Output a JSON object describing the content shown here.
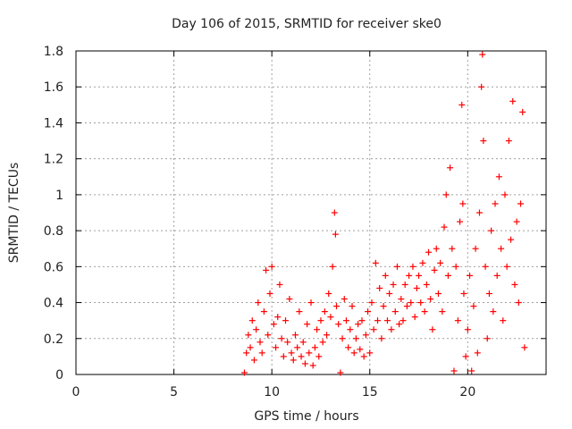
{
  "chart_data": {
    "type": "scatter",
    "title": "Day 106 of 2015, SRMTID for receiver ske0",
    "xlabel": "GPS time / hours",
    "ylabel": "SRMTID / TECUs",
    "xlim": [
      0,
      24
    ],
    "ylim": [
      0,
      1.8
    ],
    "x_ticks": [
      0,
      5,
      10,
      15,
      20
    ],
    "y_ticks": [
      0,
      0.2,
      0.4,
      0.6,
      0.8,
      1,
      1.2,
      1.4,
      1.6,
      1.8
    ],
    "x_tick_labels": [
      "0",
      "5",
      "10",
      "15",
      "20"
    ],
    "y_tick_labels": [
      "0",
      "0.2",
      "0.4",
      "0.6",
      "0.8",
      "1",
      "1.2",
      "1.4",
      "1.6",
      "1.8"
    ],
    "grid": true,
    "marker": "+",
    "series": [
      {
        "name": "SRMTID",
        "color": "#ff0000",
        "points": [
          [
            8.6,
            0.01
          ],
          [
            8.7,
            0.12
          ],
          [
            8.8,
            0.22
          ],
          [
            8.9,
            0.15
          ],
          [
            9.0,
            0.3
          ],
          [
            9.1,
            0.08
          ],
          [
            9.2,
            0.25
          ],
          [
            9.3,
            0.4
          ],
          [
            9.4,
            0.18
          ],
          [
            9.5,
            0.12
          ],
          [
            9.6,
            0.35
          ],
          [
            9.7,
            0.58
          ],
          [
            9.8,
            0.22
          ],
          [
            9.9,
            0.45
          ],
          [
            10.0,
            0.6
          ],
          [
            10.1,
            0.28
          ],
          [
            10.2,
            0.15
          ],
          [
            10.3,
            0.32
          ],
          [
            10.4,
            0.5
          ],
          [
            10.5,
            0.2
          ],
          [
            10.6,
            0.1
          ],
          [
            10.7,
            0.3
          ],
          [
            10.8,
            0.18
          ],
          [
            10.9,
            0.42
          ],
          [
            11.0,
            0.12
          ],
          [
            11.1,
            0.08
          ],
          [
            11.2,
            0.22
          ],
          [
            11.3,
            0.15
          ],
          [
            11.4,
            0.35
          ],
          [
            11.5,
            0.1
          ],
          [
            11.6,
            0.18
          ],
          [
            11.7,
            0.06
          ],
          [
            11.8,
            0.28
          ],
          [
            11.9,
            0.12
          ],
          [
            12.0,
            0.4
          ],
          [
            12.1,
            0.05
          ],
          [
            12.2,
            0.15
          ],
          [
            12.3,
            0.25
          ],
          [
            12.4,
            0.1
          ],
          [
            12.5,
            0.3
          ],
          [
            12.6,
            0.18
          ],
          [
            12.7,
            0.35
          ],
          [
            12.8,
            0.22
          ],
          [
            12.9,
            0.45
          ],
          [
            13.0,
            0.32
          ],
          [
            13.1,
            0.6
          ],
          [
            13.2,
            0.9
          ],
          [
            13.25,
            0.78
          ],
          [
            13.3,
            0.38
          ],
          [
            13.4,
            0.28
          ],
          [
            13.5,
            0.01
          ],
          [
            13.6,
            0.2
          ],
          [
            13.7,
            0.42
          ],
          [
            13.8,
            0.3
          ],
          [
            13.9,
            0.15
          ],
          [
            14.0,
            0.25
          ],
          [
            14.1,
            0.38
          ],
          [
            14.2,
            0.12
          ],
          [
            14.3,
            0.2
          ],
          [
            14.4,
            0.28
          ],
          [
            14.5,
            0.14
          ],
          [
            14.6,
            0.3
          ],
          [
            14.7,
            0.1
          ],
          [
            14.8,
            0.22
          ],
          [
            14.9,
            0.35
          ],
          [
            15.0,
            0.12
          ],
          [
            15.1,
            0.4
          ],
          [
            15.2,
            0.25
          ],
          [
            15.3,
            0.62
          ],
          [
            15.4,
            0.3
          ],
          [
            15.5,
            0.48
          ],
          [
            15.6,
            0.2
          ],
          [
            15.7,
            0.38
          ],
          [
            15.8,
            0.55
          ],
          [
            15.9,
            0.3
          ],
          [
            16.0,
            0.45
          ],
          [
            16.1,
            0.25
          ],
          [
            16.2,
            0.5
          ],
          [
            16.3,
            0.35
          ],
          [
            16.4,
            0.6
          ],
          [
            16.5,
            0.28
          ],
          [
            16.6,
            0.42
          ],
          [
            16.7,
            0.3
          ],
          [
            16.8,
            0.5
          ],
          [
            16.9,
            0.38
          ],
          [
            17.0,
            0.55
          ],
          [
            17.1,
            0.4
          ],
          [
            17.2,
            0.6
          ],
          [
            17.3,
            0.32
          ],
          [
            17.4,
            0.48
          ],
          [
            17.5,
            0.55
          ],
          [
            17.6,
            0.4
          ],
          [
            17.7,
            0.62
          ],
          [
            17.8,
            0.35
          ],
          [
            17.9,
            0.5
          ],
          [
            18.0,
            0.68
          ],
          [
            18.1,
            0.42
          ],
          [
            18.2,
            0.25
          ],
          [
            18.3,
            0.58
          ],
          [
            18.4,
            0.7
          ],
          [
            18.5,
            0.45
          ],
          [
            18.6,
            0.62
          ],
          [
            18.7,
            0.35
          ],
          [
            18.8,
            0.82
          ],
          [
            18.9,
            1.0
          ],
          [
            19.0,
            0.55
          ],
          [
            19.1,
            1.15
          ],
          [
            19.2,
            0.7
          ],
          [
            19.3,
            0.02
          ],
          [
            19.4,
            0.6
          ],
          [
            19.5,
            0.3
          ],
          [
            19.6,
            0.85
          ],
          [
            19.7,
            1.5
          ],
          [
            19.75,
            0.95
          ],
          [
            19.8,
            0.45
          ],
          [
            19.9,
            0.1
          ],
          [
            20.0,
            0.25
          ],
          [
            20.1,
            0.55
          ],
          [
            20.2,
            0.02
          ],
          [
            20.3,
            0.38
          ],
          [
            20.4,
            0.7
          ],
          [
            20.5,
            0.12
          ],
          [
            20.6,
            0.9
          ],
          [
            20.7,
            1.6
          ],
          [
            20.75,
            1.78
          ],
          [
            20.8,
            1.3
          ],
          [
            20.9,
            0.6
          ],
          [
            21.0,
            0.2
          ],
          [
            21.1,
            0.45
          ],
          [
            21.2,
            0.8
          ],
          [
            21.3,
            0.35
          ],
          [
            21.4,
            0.95
          ],
          [
            21.5,
            0.55
          ],
          [
            21.6,
            1.1
          ],
          [
            21.7,
            0.7
          ],
          [
            21.8,
            0.3
          ],
          [
            21.9,
            1.0
          ],
          [
            22.0,
            0.6
          ],
          [
            22.1,
            1.3
          ],
          [
            22.2,
            0.75
          ],
          [
            22.3,
            1.52
          ],
          [
            22.4,
            0.5
          ],
          [
            22.5,
            0.85
          ],
          [
            22.6,
            0.4
          ],
          [
            22.7,
            0.95
          ],
          [
            22.8,
            1.46
          ],
          [
            22.9,
            0.15
          ]
        ]
      }
    ]
  }
}
